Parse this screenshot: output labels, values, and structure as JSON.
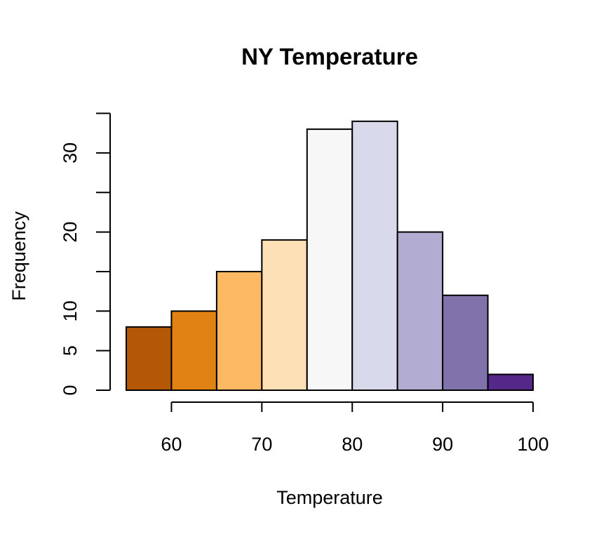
{
  "chart_data": {
    "type": "bar",
    "title": "NY Temperature",
    "xlabel": "Temperature",
    "ylabel": "Frequency",
    "bins": [
      {
        "from": 55,
        "to": 60,
        "count": 8,
        "color": "#b35806"
      },
      {
        "from": 60,
        "to": 65,
        "count": 10,
        "color": "#e08214"
      },
      {
        "from": 65,
        "to": 70,
        "count": 15,
        "color": "#fdb863"
      },
      {
        "from": 70,
        "to": 75,
        "count": 19,
        "color": "#fee0b6"
      },
      {
        "from": 75,
        "to": 80,
        "count": 33,
        "color": "#f7f7f7"
      },
      {
        "from": 80,
        "to": 85,
        "count": 34,
        "color": "#d8daeb"
      },
      {
        "from": 85,
        "to": 90,
        "count": 20,
        "color": "#b2abd2"
      },
      {
        "from": 90,
        "to": 95,
        "count": 12,
        "color": "#8073ac"
      },
      {
        "from": 95,
        "to": 100,
        "count": 2,
        "color": "#542788"
      }
    ],
    "xlim": [
      55,
      100
    ],
    "ylim": [
      0,
      35
    ],
    "x_ticks": [
      60,
      70,
      80,
      90,
      100
    ],
    "x_tick_labels": [
      "60",
      "70",
      "80",
      "90",
      "100"
    ],
    "y_ticks": [
      0,
      5,
      10,
      15,
      20,
      25,
      30,
      35
    ],
    "y_tick_labels": [
      "0",
      "5",
      "10",
      "",
      "20",
      "",
      "30",
      ""
    ],
    "grid": false
  }
}
